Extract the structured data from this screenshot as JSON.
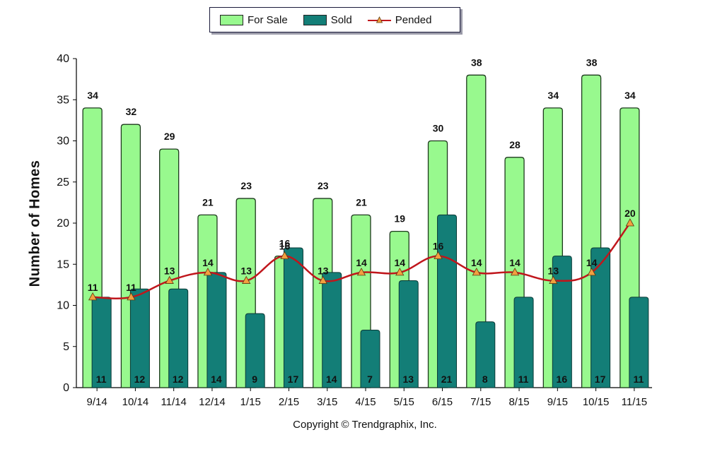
{
  "chart_data": {
    "type": "bar",
    "title": "",
    "xlabel": "",
    "ylabel": "Number of Homes",
    "categories": [
      "9/14",
      "10/14",
      "11/14",
      "12/14",
      "1/15",
      "2/15",
      "3/15",
      "4/15",
      "5/15",
      "6/15",
      "7/15",
      "8/15",
      "9/15",
      "10/15",
      "11/15"
    ],
    "series": [
      {
        "name": "For Sale",
        "kind": "bar",
        "color": "#98f98e",
        "values": [
          34,
          32,
          29,
          21,
          23,
          16,
          23,
          21,
          19,
          30,
          38,
          28,
          34,
          38,
          34
        ]
      },
      {
        "name": "Sold",
        "kind": "bar",
        "color": "#137e77",
        "values": [
          11,
          12,
          12,
          14,
          9,
          17,
          14,
          7,
          13,
          21,
          8,
          11,
          16,
          17,
          11
        ]
      },
      {
        "name": "Pended",
        "kind": "line",
        "color": "#c0161c",
        "marker_color": "#f2a040",
        "values": [
          11,
          11,
          13,
          14,
          13,
          16,
          13,
          14,
          14,
          16,
          14,
          14,
          13,
          14,
          20
        ]
      }
    ],
    "ylim": [
      0,
      40
    ],
    "yticks": [
      "0",
      "5",
      "10",
      "15",
      "20",
      "25",
      "30",
      "35",
      "40"
    ],
    "grid": false,
    "legend_position": "top-center"
  },
  "copyright": "Copyright © Trendgraphix, Inc."
}
